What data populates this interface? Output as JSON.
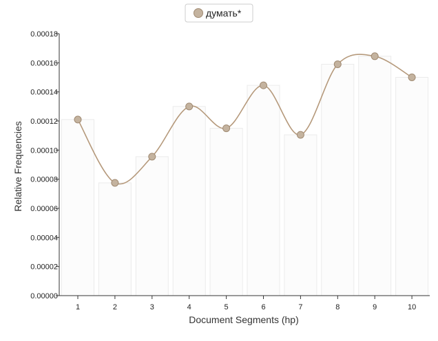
{
  "legend": {
    "series_label": "думать*"
  },
  "colors": {
    "series": "#c4b39f",
    "series_stroke": "#a08a72",
    "line": "#b5997b",
    "bar_fill": "#fcfcfc",
    "bar_stroke": "#ebebeb",
    "axis": "#333333"
  },
  "chart_data": {
    "type": "line",
    "title": "",
    "xlabel": "Document Segments (hp)",
    "ylabel": "Relative Frequencies",
    "categories": [
      "1",
      "2",
      "3",
      "4",
      "5",
      "6",
      "7",
      "8",
      "9",
      "10"
    ],
    "series": [
      {
        "name": "думать*",
        "values": [
          0.000121,
          7.75e-05,
          9.55e-05,
          0.00013,
          0.000115,
          0.0001445,
          0.0001105,
          0.000159,
          0.0001645,
          0.00015
        ]
      }
    ],
    "bars_behind_line": true,
    "ylim": [
      0,
      0.00018
    ],
    "yticks": [
      "0.00000",
      "0.00002",
      "0.00004",
      "0.00006",
      "0.00008",
      "0.00010",
      "0.00012",
      "0.00014",
      "0.00016",
      "0.00018"
    ],
    "ytick_values": [
      0,
      2e-05,
      4e-05,
      6e-05,
      8e-05,
      0.0001,
      0.00012,
      0.00014,
      0.00016,
      0.00018
    ],
    "legend_position": "top-center",
    "grid": false
  }
}
